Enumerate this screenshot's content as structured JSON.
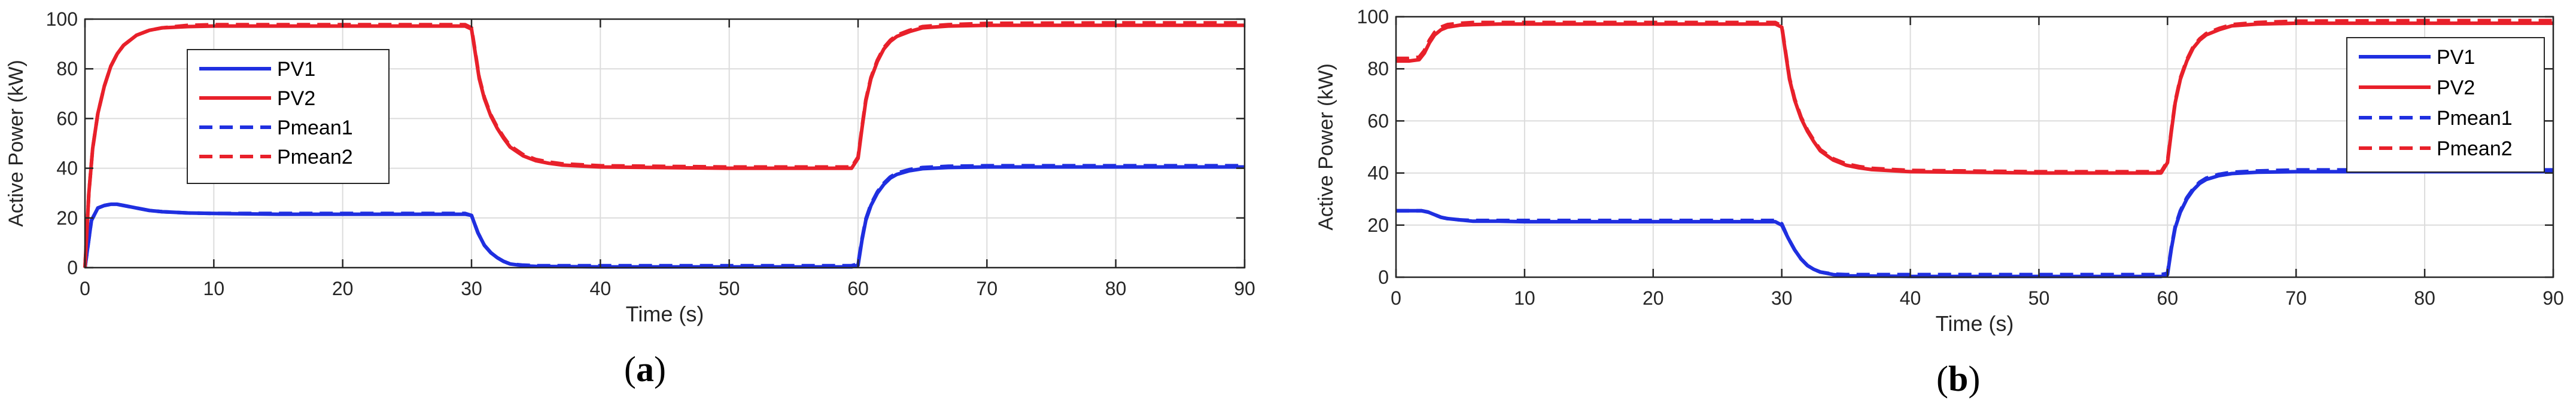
{
  "chart_data": [
    {
      "type": "line",
      "caption_open": "(",
      "caption_letter": "a",
      "caption_close": ")",
      "xlabel": "Time (s)",
      "ylabel": "Active Power (kW)",
      "xlim": [
        0,
        90
      ],
      "ylim": [
        0,
        100
      ],
      "xticks": [
        0,
        10,
        20,
        30,
        40,
        50,
        60,
        70,
        80,
        90
      ],
      "yticks": [
        0,
        20,
        40,
        60,
        80,
        100
      ],
      "grid": true,
      "legend_position": "upper-left-inside",
      "series": [
        {
          "name": "PV1",
          "color": "#1f2fe0",
          "style": "solid",
          "x": [
            0,
            0.5,
            1,
            1.5,
            2,
            2.5,
            3,
            3.5,
            4,
            5,
            6,
            8,
            10,
            15,
            20,
            25,
            29.5,
            30,
            30.5,
            31,
            31.5,
            32,
            32.5,
            33,
            34,
            35,
            40,
            50,
            59.5,
            60,
            60.3,
            60.6,
            61,
            61.5,
            62,
            62.5,
            63,
            64,
            65,
            67,
            70,
            80,
            90
          ],
          "y": [
            0,
            19,
            24,
            25,
            25.5,
            25.5,
            25,
            24.5,
            24,
            23,
            22.5,
            22,
            21.8,
            21.5,
            21.5,
            21.5,
            21.5,
            21,
            14,
            9,
            6,
            4,
            2.5,
            1.5,
            0.8,
            0.5,
            0.3,
            0.3,
            0.3,
            1,
            11,
            19,
            25,
            30,
            33.5,
            36,
            37.5,
            39,
            39.8,
            40.3,
            40.5,
            40.5,
            40.5
          ]
        },
        {
          "name": "PV2",
          "color": "#e8202a",
          "style": "solid",
          "x": [
            0,
            0.3,
            0.6,
            1,
            1.5,
            2,
            2.5,
            3,
            4,
            5,
            6,
            8,
            10,
            20,
            29.5,
            30,
            30.3,
            30.6,
            31,
            31.5,
            32,
            32.5,
            33,
            34,
            35,
            36,
            37,
            40,
            50,
            59.5,
            60,
            60.3,
            60.6,
            61,
            61.5,
            62,
            62.5,
            63,
            64,
            65,
            67,
            70,
            80,
            90
          ],
          "y": [
            0,
            30,
            48,
            62,
            73,
            81,
            86,
            89.5,
            93.5,
            95.5,
            96.5,
            97,
            97.2,
            97.2,
            97.2,
            96,
            86,
            76,
            68,
            61,
            56,
            52,
            48.5,
            45,
            43,
            42,
            41.3,
            40.5,
            40,
            40,
            44,
            56,
            67,
            76,
            83,
            88,
            91,
            93,
            95,
            96.5,
            97.2,
            97.5,
            97.5,
            97.5
          ]
        },
        {
          "name": "Pmean1",
          "color": "#1f2fe0",
          "style": "dashed",
          "x": [
            0,
            0.5,
            1,
            1.5,
            2,
            2.5,
            3,
            3.5,
            4,
            5,
            6,
            8,
            10,
            15,
            20,
            25,
            29.5,
            30,
            30.5,
            31,
            31.5,
            32,
            32.5,
            33,
            34,
            35,
            40,
            50,
            59.5,
            60,
            60.3,
            60.6,
            61,
            61.5,
            62,
            62.5,
            63,
            64,
            65,
            67,
            70,
            80,
            90
          ],
          "y": [
            0,
            19,
            24,
            25,
            25.5,
            25.5,
            25,
            24.5,
            24,
            23,
            22.5,
            22,
            21.8,
            21.8,
            21.8,
            21.8,
            21.8,
            21,
            14,
            9,
            6,
            4,
            2.5,
            1.5,
            1,
            0.8,
            0.8,
            0.8,
            0.8,
            1.5,
            11.5,
            19.5,
            25.5,
            30.5,
            34,
            36.5,
            38,
            39.5,
            40.3,
            40.8,
            41,
            41,
            41
          ]
        },
        {
          "name": "Pmean2",
          "color": "#e8202a",
          "style": "dashed",
          "x": [
            0,
            0.3,
            0.6,
            1,
            1.5,
            2,
            2.5,
            3,
            4,
            5,
            6,
            8,
            10,
            20,
            29.5,
            30,
            30.3,
            30.6,
            31,
            31.5,
            32,
            32.5,
            33,
            34,
            35,
            36,
            37,
            40,
            50,
            59.5,
            60,
            60.3,
            60.6,
            61,
            61.5,
            62,
            62.5,
            63,
            64,
            65,
            67,
            70,
            80,
            90
          ],
          "y": [
            0,
            30,
            48,
            62,
            73,
            81,
            86,
            89.5,
            93.5,
            95.5,
            96.5,
            97.5,
            97.8,
            97.8,
            97.8,
            96.5,
            86.5,
            76.5,
            68.5,
            61.5,
            56.5,
            52.5,
            49,
            45.5,
            43.5,
            42.5,
            41.8,
            41,
            40.5,
            40.5,
            44.5,
            56.5,
            67.5,
            76.5,
            83.5,
            88.5,
            91.5,
            93.5,
            95.5,
            97,
            97.8,
            98.3,
            98.5,
            98.5
          ]
        }
      ]
    },
    {
      "type": "line",
      "caption_open": "(",
      "caption_letter": "b",
      "caption_close": ")",
      "xlabel": "Time (s)",
      "ylabel": "Active Power (kW)",
      "xlim": [
        0,
        90
      ],
      "ylim": [
        0,
        100
      ],
      "xticks": [
        0,
        10,
        20,
        30,
        40,
        50,
        60,
        70,
        80,
        90
      ],
      "yticks": [
        0,
        20,
        40,
        60,
        80,
        100
      ],
      "grid": true,
      "legend_position": "upper-right-inside",
      "series": [
        {
          "name": "PV1",
          "color": "#1f2fe0",
          "style": "solid",
          "x": [
            0,
            1,
            2,
            2.5,
            3,
            3.5,
            4,
            5,
            6,
            8,
            10,
            15,
            20,
            25,
            29.5,
            30,
            30.5,
            31,
            31.5,
            32,
            32.5,
            33,
            34,
            35,
            40,
            50,
            59.5,
            60,
            60.3,
            60.6,
            61,
            61.5,
            62,
            62.5,
            63,
            64,
            65,
            67,
            70,
            80,
            90
          ],
          "y": [
            25.5,
            25.5,
            25.5,
            25,
            24,
            23,
            22.5,
            22,
            21.5,
            21.5,
            21.3,
            21.3,
            21.3,
            21.3,
            21.3,
            20,
            15,
            10.5,
            7,
            4.5,
            3,
            2,
            1,
            0.5,
            0.3,
            0.3,
            0.3,
            1,
            11,
            19,
            25,
            30,
            33.5,
            36,
            37.5,
            39,
            39.8,
            40.3,
            40.5,
            40.5,
            40.5
          ]
        },
        {
          "name": "PV2",
          "color": "#e8202a",
          "style": "solid",
          "x": [
            0,
            1,
            1.8,
            2.2,
            2.6,
            3,
            3.5,
            4,
            5,
            6,
            8,
            10,
            20,
            29.5,
            30,
            30.3,
            30.6,
            31,
            31.5,
            32,
            32.5,
            33,
            34,
            35,
            36,
            37,
            40,
            50,
            59.5,
            60,
            60.3,
            60.6,
            61,
            61.5,
            62,
            62.5,
            63,
            64,
            65,
            67,
            70,
            80,
            90
          ],
          "y": [
            83,
            83,
            83.5,
            86,
            90,
            93,
            95,
            96,
            96.8,
            97,
            97.2,
            97.2,
            97.2,
            97.2,
            96,
            86,
            76,
            68,
            61,
            56,
            52,
            48.5,
            45,
            43,
            42,
            41.3,
            40.5,
            40,
            40,
            44,
            56,
            67,
            76,
            83,
            88,
            91,
            93,
            95,
            96.5,
            97.2,
            97.5,
            97.5,
            97.5
          ]
        },
        {
          "name": "Pmean1",
          "color": "#1f2fe0",
          "style": "dashed",
          "x": [
            0,
            1,
            2,
            2.5,
            3,
            3.5,
            4,
            5,
            6,
            8,
            10,
            15,
            20,
            25,
            29.5,
            30,
            30.5,
            31,
            31.5,
            32,
            32.5,
            33,
            34,
            35,
            40,
            50,
            59.5,
            60,
            60.3,
            60.6,
            61,
            61.5,
            62,
            62.5,
            63,
            64,
            65,
            67,
            70,
            80,
            90
          ],
          "y": [
            25.5,
            25.5,
            25.5,
            25,
            24,
            23,
            22.5,
            22,
            21.8,
            21.8,
            21.8,
            21.8,
            21.8,
            21.8,
            21.8,
            20.5,
            15,
            10.5,
            7,
            4.5,
            3,
            2,
            1.2,
            1,
            1,
            1,
            1,
            1.5,
            11.5,
            19.5,
            25.5,
            30.5,
            34,
            36.5,
            38,
            39.5,
            40.3,
            40.8,
            41.2,
            41.2,
            41.2
          ]
        },
        {
          "name": "Pmean2",
          "color": "#e8202a",
          "style": "dashed",
          "x": [
            0,
            1,
            1.8,
            2.2,
            2.6,
            3,
            3.5,
            4,
            5,
            6,
            8,
            10,
            20,
            29.5,
            30,
            30.3,
            30.6,
            31,
            31.5,
            32,
            32.5,
            33,
            34,
            35,
            36,
            37,
            40,
            50,
            59.5,
            60,
            60.3,
            60.6,
            61,
            61.5,
            62,
            62.5,
            63,
            64,
            65,
            67,
            70,
            80,
            90
          ],
          "y": [
            84,
            84,
            84.5,
            87,
            91,
            94,
            96,
            97,
            97.5,
            97.8,
            97.8,
            97.8,
            97.8,
            97.8,
            96.5,
            86.5,
            76.5,
            68.5,
            61.5,
            56.5,
            52.5,
            49,
            45.5,
            43.5,
            42.5,
            41.8,
            41,
            40.5,
            40.5,
            44.5,
            56.5,
            67.5,
            76.5,
            83.5,
            88.5,
            91.5,
            93.5,
            95.5,
            97,
            97.8,
            98.3,
            98.5,
            98.5
          ]
        }
      ]
    }
  ]
}
